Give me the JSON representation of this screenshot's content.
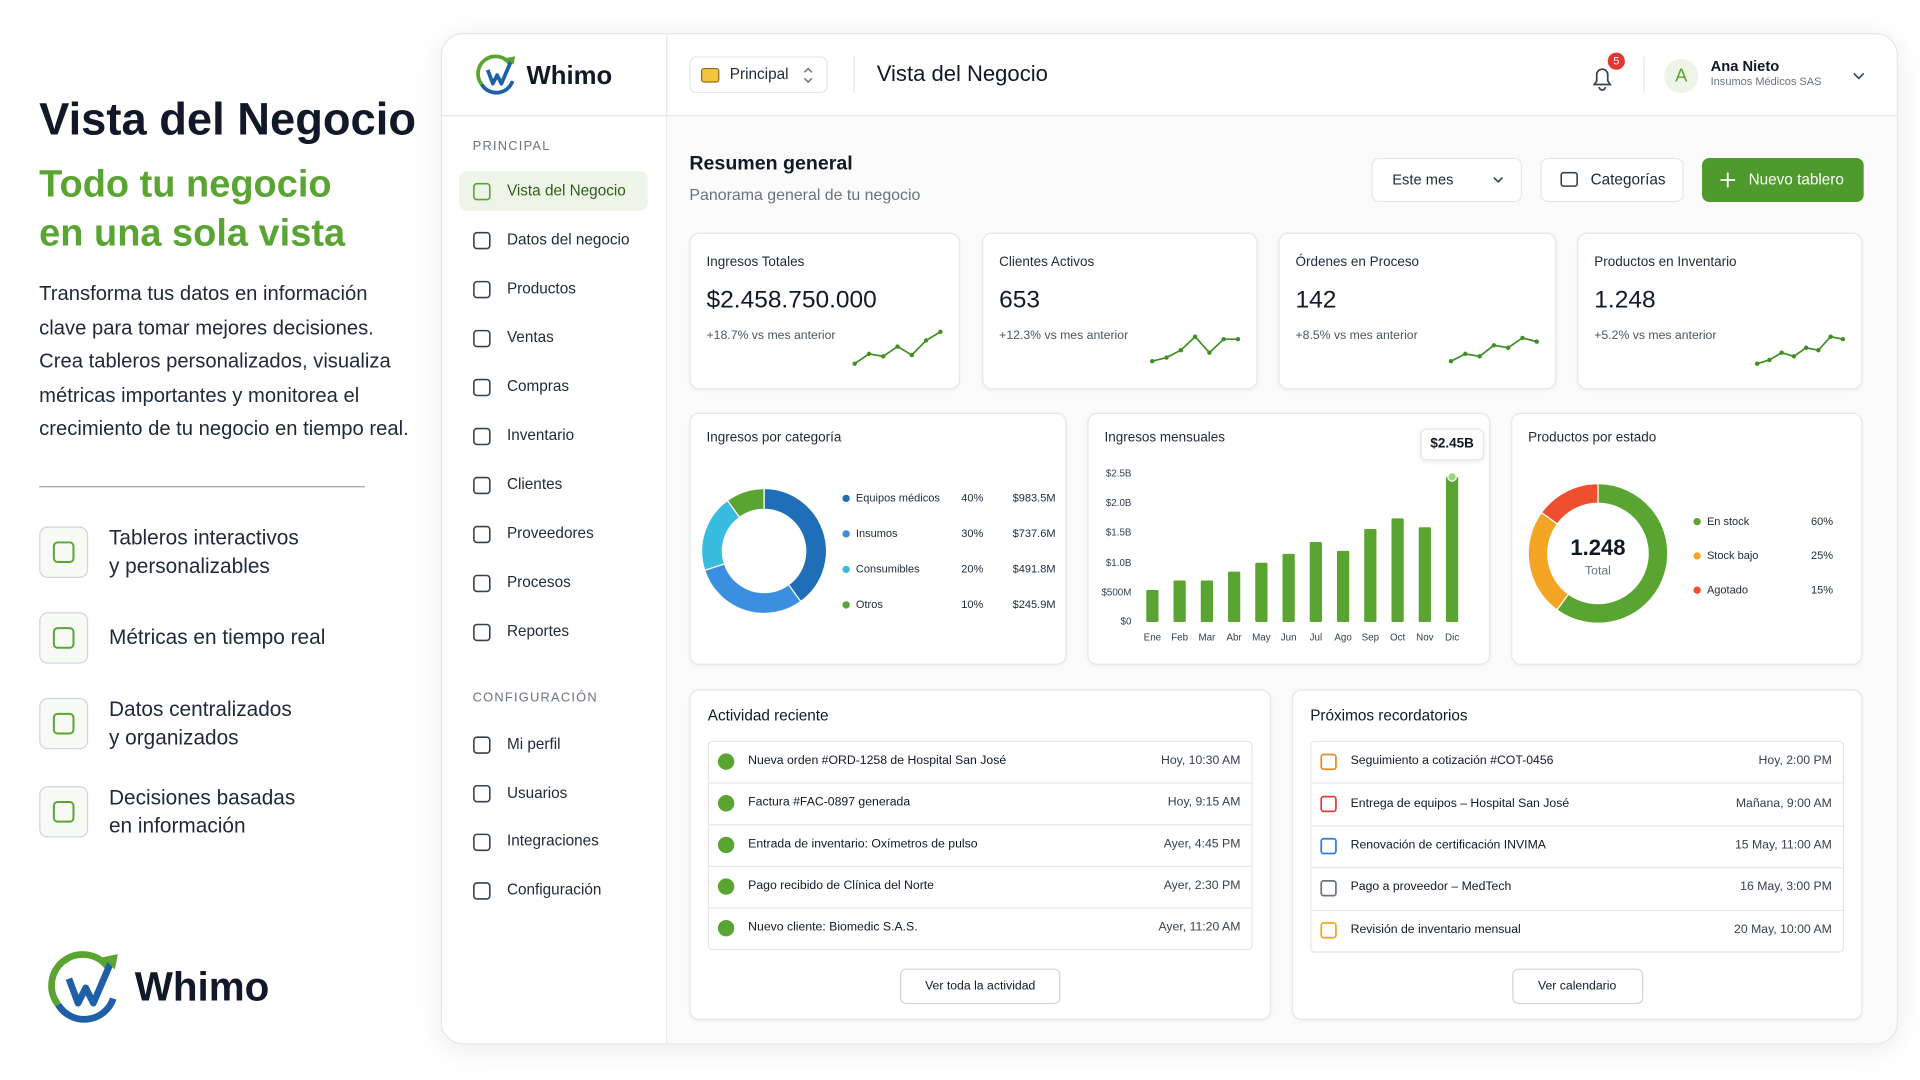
{
  "intro": {
    "title": "Vista del Negocio",
    "headline": [
      "Todo tu negocio",
      "en una sola vista"
    ],
    "description": [
      "Transforma tus datos en información",
      "clave para tomar mejores decisiones.",
      "Crea tableros personalizados, visualiza",
      "métricas importantes y monitorea el",
      "crecimiento de tu negocio en tiempo real."
    ],
    "features": [
      [
        "Tableros interactivos",
        "y personalizables"
      ],
      [
        "Métricas en tiempo real"
      ],
      [
        "Datos centralizados",
        "y organizados"
      ],
      [
        "Decisiones basadas",
        "en información"
      ]
    ],
    "brand": "Whimo"
  },
  "app": {
    "brand": "Whimo",
    "workspace": "Principal",
    "page_title": "Vista del Negocio",
    "notifications": "5",
    "user": {
      "initial": "A",
      "name": "Ana Nieto",
      "company": "Insumos Médicos SAS"
    },
    "nav": [
      {
        "section": "PRINCIPAL",
        "items": [
          {
            "label": "Vista del Negocio",
            "active": true
          },
          {
            "label": "Datos del negocio"
          },
          {
            "label": "Productos"
          },
          {
            "label": "Ventas"
          },
          {
            "label": "Compras"
          },
          {
            "label": "Inventario"
          },
          {
            "label": "Clientes"
          },
          {
            "label": "Proveedores"
          },
          {
            "label": "Procesos"
          },
          {
            "label": "Reportes"
          }
        ]
      },
      {
        "section": "CONFIGURACIÓN",
        "items": [
          {
            "label": "Mi perfil"
          },
          {
            "label": "Usuarios"
          },
          {
            "label": "Integraciones"
          },
          {
            "label": "Configuración"
          }
        ]
      }
    ],
    "overview": {
      "title": "Resumen general",
      "subtitle": "Panorama general de tu negocio",
      "period": "Este mes",
      "categories_button": "Categorías",
      "new_button": "Nuevo tablero"
    },
    "kpis": [
      {
        "label": "Ingresos Totales",
        "value": "$2.458.750.000",
        "change": "+18.7% vs mes anterior"
      },
      {
        "label": "Clientes Activos",
        "value": "653",
        "change": "+12.3% vs mes anterior"
      },
      {
        "label": "Órdenes en Proceso",
        "value": "142",
        "change": "+8.5% vs mes anterior"
      },
      {
        "label": "Productos en Inventario",
        "value": "1.248",
        "change": "+5.2% vs mes anterior"
      }
    ],
    "activity": {
      "title": "Actividad reciente",
      "button": "Ver toda la actividad",
      "items": [
        {
          "text": "Nueva orden #ORD-1258 de Hospital San José",
          "time": "Hoy, 10:30 AM"
        },
        {
          "text": "Factura #FAC-0897 generada",
          "time": "Hoy, 9:15 AM"
        },
        {
          "text": "Entrada de inventario: Oxímetros de pulso",
          "time": "Ayer, 4:45 PM"
        },
        {
          "text": "Pago recibido de Clínica del Norte",
          "time": "Ayer, 2:30 PM"
        },
        {
          "text": "Nuevo cliente: Biomedic S.A.S.",
          "time": "Ayer, 11:20 AM"
        }
      ]
    },
    "reminders": {
      "title": "Próximos recordatorios",
      "button": "Ver calendario",
      "items": [
        {
          "text": "Seguimiento a cotización #COT-0456",
          "time": "Hoy, 2:00 PM",
          "color": "#f08a24"
        },
        {
          "text": "Entrega de equipos – Hospital San José",
          "time": "Mañana, 9:00 AM",
          "color": "#e03b3b"
        },
        {
          "text": "Renovación de certificación INVIMA",
          "time": "15 May, 11:00 AM",
          "color": "#2a7de1"
        },
        {
          "text": "Pago a proveedor – MedTech",
          "time": "16 May, 3:00 PM",
          "color": "#6b7280"
        },
        {
          "text": "Revisión de inventario mensual",
          "time": "20 May, 10:00 AM",
          "color": "#f5a524"
        }
      ]
    }
  },
  "chart_data": [
    {
      "type": "donut",
      "title": "Ingresos por categoría",
      "categories": [
        "Equipos médicos",
        "Insumos",
        "Consumibles",
        "Otros"
      ],
      "values": [
        40,
        30,
        20,
        10
      ],
      "value_labels": [
        "40%",
        "30%",
        "20%",
        "10%"
      ],
      "amounts": [
        "$983.5M",
        "$737.6M",
        "$491.8M",
        "$245.9M"
      ],
      "colors": [
        "#1f6fb8",
        "#3b8fe0",
        "#38bde0",
        "#5aa532"
      ]
    },
    {
      "type": "bar",
      "title": "Ingresos mensuales",
      "categories": [
        "Ene",
        "Feb",
        "Mar",
        "Abr",
        "May",
        "Jun",
        "Jul",
        "Ago",
        "Sep",
        "Oct",
        "Nov",
        "Dic"
      ],
      "values": [
        540,
        700,
        700,
        850,
        1000,
        1150,
        1350,
        1200,
        1570,
        1750,
        1600,
        2450
      ],
      "value_labels": [
        null,
        null,
        null,
        null,
        null,
        null,
        null,
        null,
        null,
        null,
        null,
        "$2.45B"
      ],
      "color": "#5aa532",
      "grid": false,
      "ylim": [
        0,
        2500
      ],
      "yticks": [
        {
          "value": 0,
          "label": "$0"
        },
        {
          "value": 500,
          "label": "$500M"
        },
        {
          "value": 1000,
          "label": "$1.0B"
        },
        {
          "value": 1500,
          "label": "$1.5B"
        },
        {
          "value": 2000,
          "label": "$2.0B"
        },
        {
          "value": 2500,
          "label": "$2.5B"
        }
      ]
    },
    {
      "type": "donut",
      "title": "Productos por estado",
      "center_value": "1.248",
      "center_label": "Total",
      "categories": [
        "En stock",
        "Stock bajo",
        "Agotado"
      ],
      "values": [
        60,
        25,
        15
      ],
      "value_labels": [
        "60%",
        "25%",
        "15%"
      ],
      "colors": [
        "#5aa532",
        "#f5a524",
        "#ef4f2f"
      ]
    }
  ]
}
